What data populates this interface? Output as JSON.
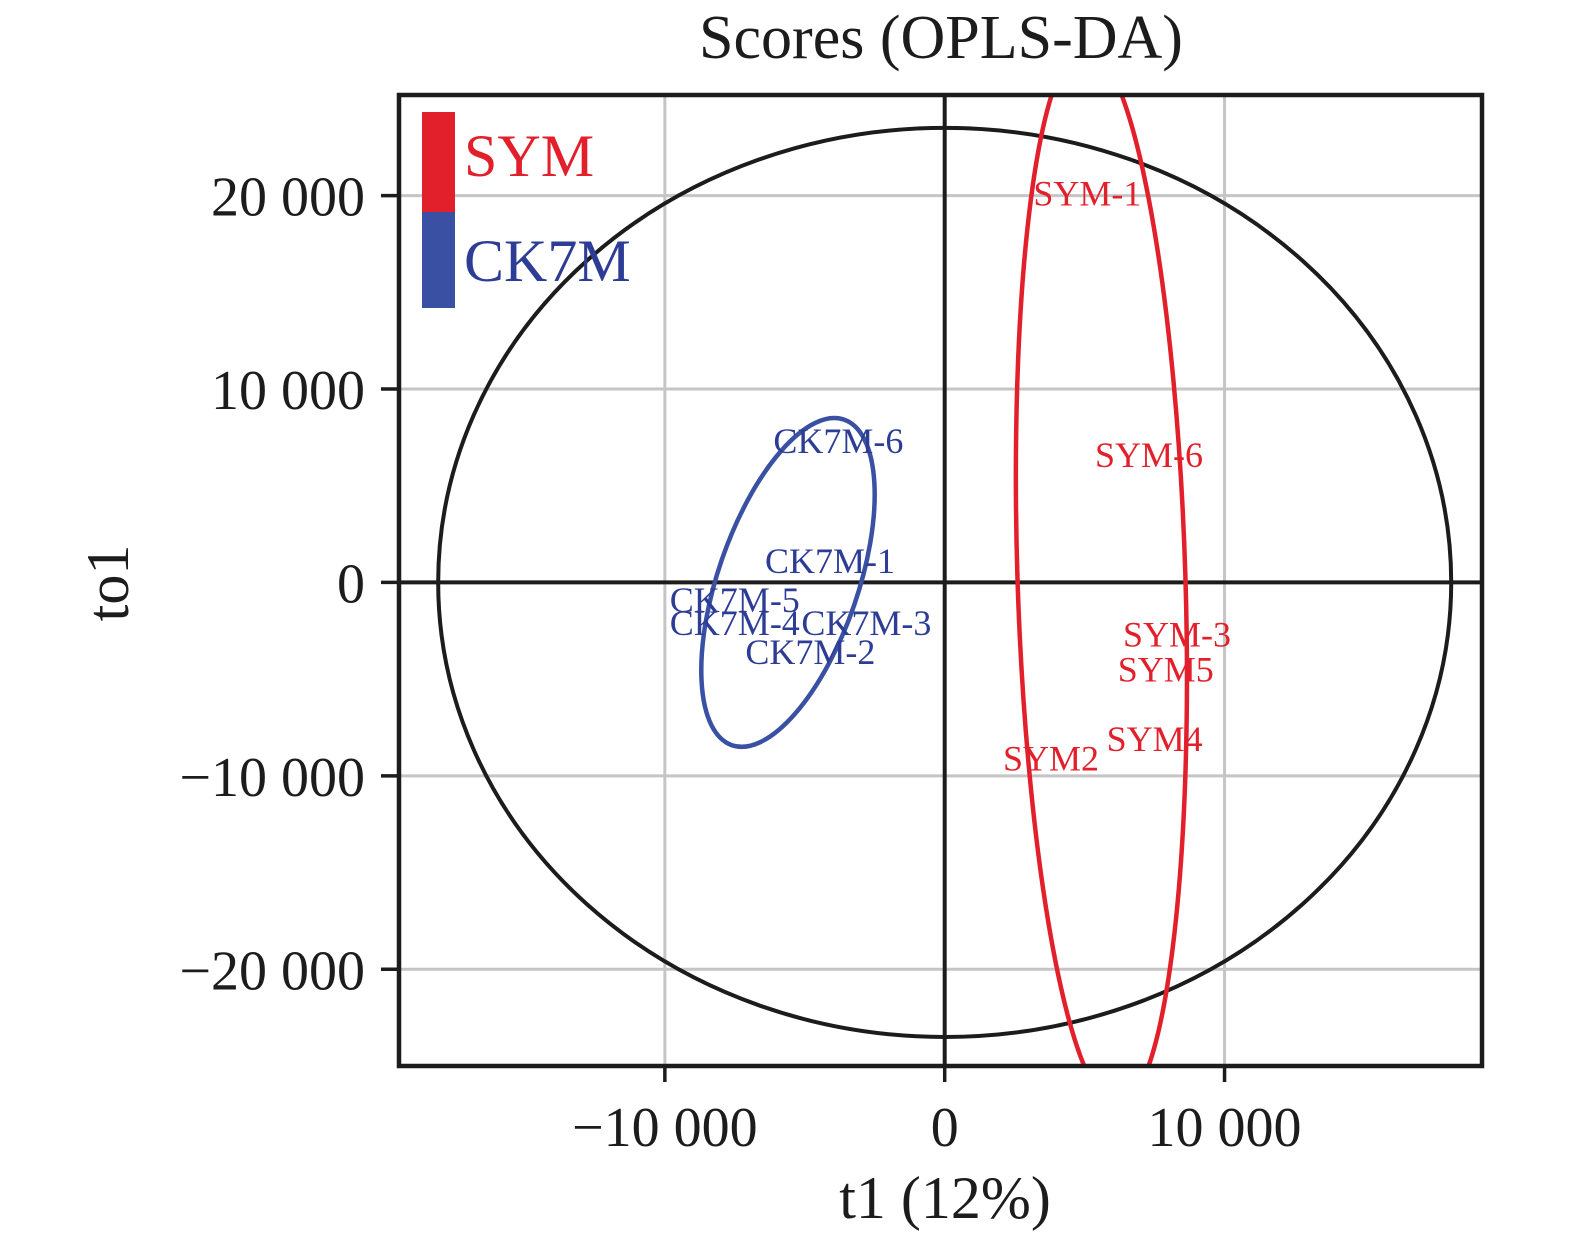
{
  "title": "Scores (OPLS-DA)",
  "colors": {
    "background": "#ffffff",
    "grid": "#c5c5c5",
    "axis": "#1c1c1c",
    "sym_red": "#e2202b",
    "ck7m_blue": "#3a51a3",
    "ck7m_text_blue": "#2d3c94"
  },
  "legend": {
    "items": [
      {
        "label": "SYM",
        "color": "#e2202b",
        "text_color": "#e2202b"
      },
      {
        "label": "CK7M",
        "color": "#3a51a3",
        "text_color": "#2d3c94"
      }
    ]
  },
  "axes": {
    "x": {
      "label": "t1 (12%)",
      "ticks": [
        -10000,
        0,
        10000
      ],
      "tick_labels": [
        "−10 000",
        "0",
        "10 000"
      ],
      "gridlines": [
        -10000,
        10000
      ]
    },
    "y": {
      "label": "to1",
      "ticks": [
        20000,
        10000,
        0,
        -10000,
        -20000
      ],
      "tick_labels": [
        "20 000",
        "10 000",
        "0",
        "−10 000",
        "−20 000"
      ],
      "gridlines": [
        20000,
        10000,
        -10000,
        -20000
      ]
    }
  },
  "chart_data": {
    "type": "scatter",
    "title": "Scores (OPLS-DA)",
    "xlabel": "t1 (12%)",
    "ylabel": "to1",
    "xlim": [
      -19500,
      19200
    ],
    "ylim": [
      -25000,
      25200
    ],
    "grid": true,
    "legend_position": "top-left-inside",
    "series": [
      {
        "name": "SYM",
        "color": "#e2202b",
        "points": [
          {
            "label": "SYM-1",
            "t1": 5100,
            "to1": 20100
          },
          {
            "label": "SYM-6",
            "t1": 7300,
            "to1": 6600
          },
          {
            "label": "SYM-3",
            "t1": 8300,
            "to1": -2700
          },
          {
            "label": "SYM5",
            "t1": 7900,
            "to1": -4500
          },
          {
            "label": "SYM4",
            "t1": 7500,
            "to1": -8100
          },
          {
            "label": "SYM2",
            "t1": 3800,
            "to1": -9100
          }
        ]
      },
      {
        "name": "CK7M",
        "color": "#2d3c94",
        "points": [
          {
            "label": "CK7M-6",
            "t1": -3800,
            "to1": 7300
          },
          {
            "label": "CK7M-1",
            "t1": -4100,
            "to1": 1100
          },
          {
            "label": "CK7M-5",
            "t1": -7500,
            "to1": -900
          },
          {
            "label": "CK7M-4",
            "t1": -7500,
            "to1": -2100
          },
          {
            "label": "CK7M-3",
            "t1": -2800,
            "to1": -2100
          },
          {
            "label": "CK7M-2",
            "t1": -4800,
            "to1": -3600
          }
        ]
      }
    ],
    "ellipses": [
      {
        "name": "hotelling-t2",
        "color": "#1c1c1c",
        "cx": 0,
        "cy": 0,
        "rx": 18100,
        "ry": 23500,
        "tilt_deg": 0,
        "stroke_px": 4
      },
      {
        "name": "ck7m-cluster",
        "color": "#3a51a3",
        "cx": -5600,
        "cy": 0,
        "rx": 2500,
        "ry": 8900,
        "tilt_deg": 19,
        "stroke_px": 4.5
      },
      {
        "name": "sym-cluster",
        "color": "#e2202b",
        "cx": 5600,
        "cy": 300,
        "rx": 3000,
        "ry": 27400,
        "tilt_deg": -1.8,
        "stroke_px": 4.5
      }
    ]
  }
}
